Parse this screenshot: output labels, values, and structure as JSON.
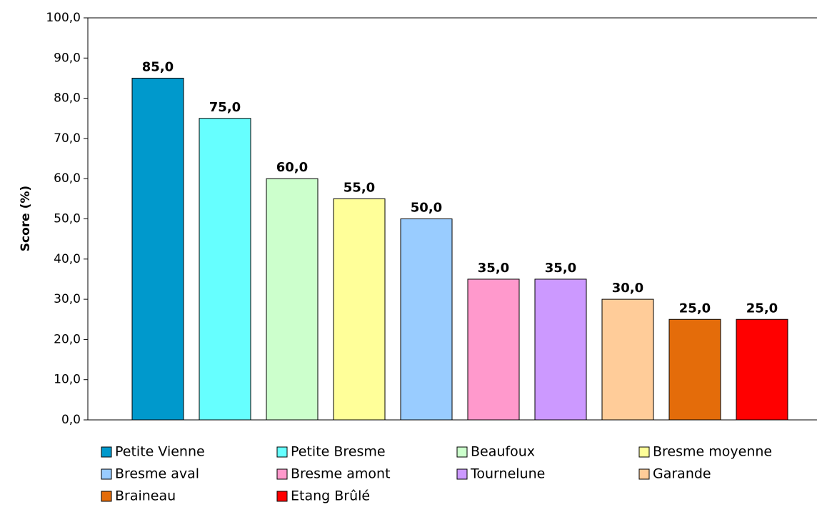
{
  "chart_data": {
    "type": "bar",
    "y_label": "Score (%)",
    "ylim": [
      0,
      100
    ],
    "yticks": [
      {
        "value": 0,
        "label": "0,0"
      },
      {
        "value": 10,
        "label": "10,0"
      },
      {
        "value": 20,
        "label": "20,0"
      },
      {
        "value": 30,
        "label": "30,0"
      },
      {
        "value": 40,
        "label": "40,0"
      },
      {
        "value": 50,
        "label": "50,0"
      },
      {
        "value": 60,
        "label": "60,0"
      },
      {
        "value": 70,
        "label": "70,0"
      },
      {
        "value": 80,
        "label": "80,0"
      },
      {
        "value": 90,
        "label": "90,0"
      },
      {
        "value": 100,
        "label": "100,0"
      }
    ],
    "legend": "bottom",
    "series": [
      {
        "name": "Petite Vienne",
        "color": "#0099cc",
        "values": [
          85
        ],
        "value_labels": [
          "85,0"
        ]
      },
      {
        "name": "Petite Bresme",
        "color": "#66ffff",
        "values": [
          75
        ],
        "value_labels": [
          "75,0"
        ]
      },
      {
        "name": "Beaufoux",
        "color": "#ccffcc",
        "values": [
          60
        ],
        "value_labels": [
          "60,0"
        ]
      },
      {
        "name": "Bresme moyenne",
        "color": "#ffff99",
        "values": [
          55
        ],
        "value_labels": [
          "55,0"
        ]
      },
      {
        "name": "Bresme aval",
        "color": "#99ccff",
        "values": [
          50
        ],
        "value_labels": [
          "50,0"
        ]
      },
      {
        "name": "Bresme amont",
        "color": "#ff99cc",
        "values": [
          35
        ],
        "value_labels": [
          "35,0"
        ]
      },
      {
        "name": "Tournelune",
        "color": "#cc99ff",
        "values": [
          35
        ],
        "value_labels": [
          "35,0"
        ]
      },
      {
        "name": "Garande",
        "color": "#ffcc99",
        "values": [
          30
        ],
        "value_labels": [
          "30,0"
        ]
      },
      {
        "name": "Braineau",
        "color": "#e46c0a",
        "values": [
          25
        ],
        "value_labels": [
          "25,0"
        ]
      },
      {
        "name": "Etang Brûlé",
        "color": "#ff0000",
        "values": [
          25
        ],
        "value_labels": [
          "25,0"
        ]
      }
    ]
  }
}
